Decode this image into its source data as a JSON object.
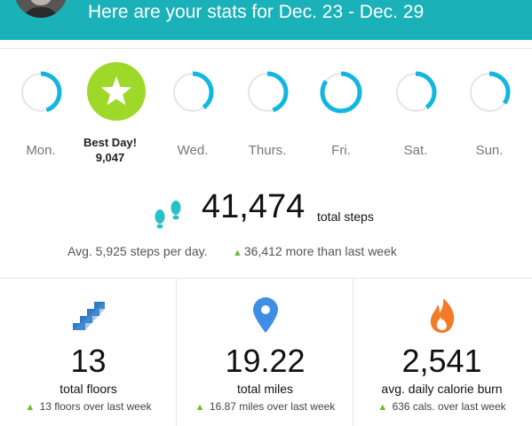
{
  "header": {
    "title": "Here are your stats for Dec. 23 - Dec. 29"
  },
  "days": [
    {
      "label": "Mon.",
      "progress": 0.45,
      "best": false
    },
    {
      "label": "",
      "progress": 1.0,
      "best": true
    },
    {
      "label": "Wed.",
      "progress": 0.4,
      "best": false
    },
    {
      "label": "Thurs.",
      "progress": 0.45,
      "best": false
    },
    {
      "label": "Fri.",
      "progress": 0.85,
      "best": false
    },
    {
      "label": "Sat.",
      "progress": 0.4,
      "best": false
    },
    {
      "label": "Sun.",
      "progress": 0.35,
      "best": false
    }
  ],
  "best_day": {
    "title": "Best Day!",
    "steps": "9,047"
  },
  "steps": {
    "value": "41,474",
    "unit": "total steps",
    "average": "Avg. 5,925 steps per day.",
    "comparison": "36,412 more than last week"
  },
  "stats": [
    {
      "icon": "stairs-icon",
      "value": "13",
      "label": "total floors",
      "comparison": "13 floors over last week"
    },
    {
      "icon": "location-pin-icon",
      "value": "19.22",
      "label": "total miles",
      "comparison": "16.87 miles over last week"
    },
    {
      "icon": "flame-icon",
      "value": "2,541",
      "label": "avg. daily calorie burn",
      "comparison": "636 cals. over last week"
    }
  ],
  "colors": {
    "header": "#1ab1b8",
    "ring": "#12b7e0",
    "ring_track": "#e5e5e5",
    "best": "#9ed92a",
    "up_arrow": "#6dbd2b"
  }
}
